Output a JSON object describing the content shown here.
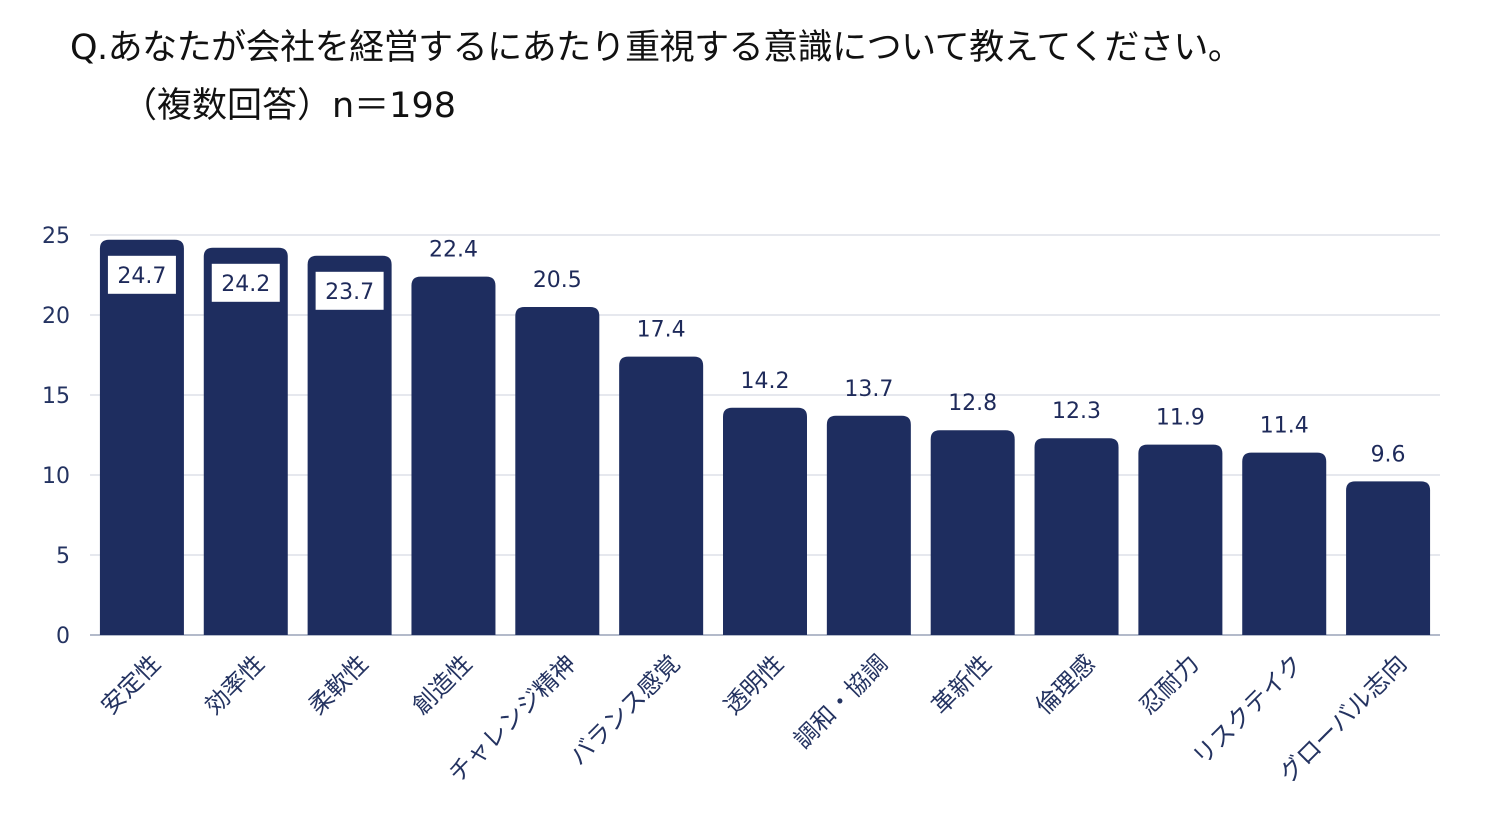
{
  "title": {
    "line1": "Q.あなたが会社を経営するにあたり重視する意識について教えてください。",
    "line2": "（複数回答）n＝198"
  },
  "colors": {
    "bar": "#1e2d5f",
    "grid": "#d7dbe3",
    "axis_text": "#243361",
    "label_box": "#ffffff"
  },
  "chart_data": {
    "type": "bar",
    "categories": [
      "安定性",
      "効率性",
      "柔軟性",
      "創造性",
      "チャレンジ精神",
      "バランス感覚",
      "透明性",
      "調和・協調",
      "革新性",
      "倫理感",
      "忍耐力",
      "リスクテイク",
      "グローバル志向"
    ],
    "values": [
      24.7,
      24.2,
      23.7,
      22.4,
      20.5,
      17.4,
      14.2,
      13.7,
      12.8,
      12.3,
      11.9,
      11.4,
      9.6
    ],
    "ylim": [
      0,
      25
    ],
    "yticks": [
      0,
      5,
      10,
      15,
      20,
      25
    ],
    "grid": true,
    "xlabel": "",
    "ylabel": ""
  }
}
